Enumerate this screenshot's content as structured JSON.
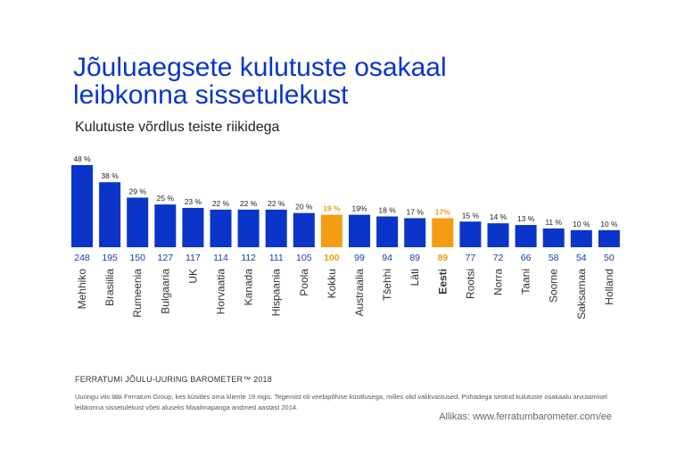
{
  "title_line1": "Jõuluaegsete kulutuste osakaal",
  "title_line2": "leibkonna sissetulekust",
  "subtitle": "Kulutuste võrdlus teiste riikidega",
  "footer_title": "FERRATUMI JÕULU-UURING BAROMETER™ 2018",
  "footer_note": "Uuringu viis läbi Ferratum Group, kes küsitles oma kliente 19 riigis. Tegemist oli veebipõhise küsitlusega, milles olid valikvastused. Pühadega seotud kulutuste osakaalu arvutamisel leibkonna sissetulekust võeti aluseks Maailmapanga andmed aastast 2014.",
  "source": "Allikas: www.ferratumbarometer.com/ee",
  "colors": {
    "primary": "#0a35c8",
    "highlight": "#f39c12"
  },
  "chart_data": {
    "type": "bar",
    "categories": [
      "Mehhiko",
      "Brasiilia",
      "Rumeenia",
      "Bulgaaria",
      "UK",
      "Horvaatia",
      "Kanada",
      "Hispaania",
      "Poola",
      "Kokku",
      "Austraalia",
      "Tšehhi",
      "Läti",
      "Eesti",
      "Rootsi",
      "Norra",
      "Taani",
      "Soome",
      "Saksamaa",
      "Holland"
    ],
    "values": [
      48,
      38,
      29,
      25,
      23,
      22,
      22,
      22,
      20,
      19,
      19,
      18,
      17,
      17,
      15,
      14,
      13,
      11,
      10,
      10
    ],
    "value_labels": [
      "48 %",
      "38 %",
      "29 %",
      "25 %",
      "23 %",
      "22 %",
      "22 %",
      "22 %",
      "20 %",
      "19 %",
      "19%",
      "18 %",
      "17 %",
      "17%",
      "15 %",
      "14 %",
      "13 %",
      "11 %",
      "10 %",
      "10 %"
    ],
    "index_values": [
      248,
      195,
      150,
      127,
      117,
      114,
      112,
      111,
      105,
      100,
      99,
      94,
      89,
      89,
      77,
      72,
      66,
      58,
      54,
      50
    ],
    "highlighted": [
      "Kokku",
      "Eesti"
    ],
    "bold": [
      "Eesti"
    ],
    "ylim": [
      0,
      48
    ],
    "legend": "none",
    "grid": false
  }
}
